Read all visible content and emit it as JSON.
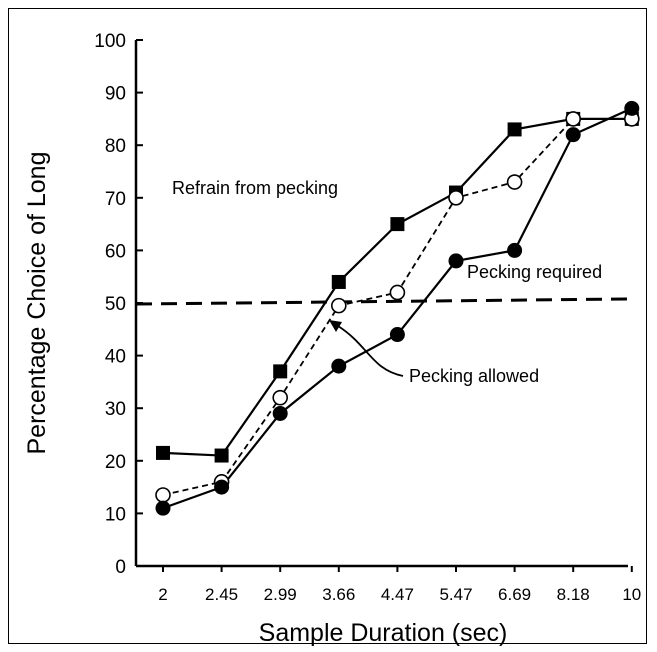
{
  "chart_data": {
    "type": "line",
    "xlabel": "Sample Duration (sec)",
    "ylabel": "Percentage Choice of Long",
    "ylim": [
      0,
      100
    ],
    "yticks": [
      "0",
      "10",
      "20",
      "30",
      "40",
      "50",
      "60",
      "70",
      "80",
      "90",
      "100"
    ],
    "categories": [
      "2",
      "2.45",
      "2.99",
      "3.66",
      "4.47",
      "5.47",
      "6.69",
      "8.18",
      "10"
    ],
    "series": [
      {
        "name": "Refrain from pecking",
        "marker": "filled-square",
        "line": "solid",
        "values": [
          21.5,
          21,
          37,
          54,
          65,
          71,
          83,
          85,
          85
        ]
      },
      {
        "name": "Pecking allowed",
        "marker": "open-circle",
        "line": "dashed",
        "values": [
          13.5,
          16,
          32,
          49.5,
          52,
          70,
          73,
          85,
          85
        ]
      },
      {
        "name": "Pecking required",
        "marker": "filled-circle",
        "line": "solid",
        "values": [
          11,
          15,
          29,
          38,
          44,
          58,
          60,
          82,
          87
        ]
      }
    ],
    "reference_line": {
      "y": 50,
      "style": "dashed"
    },
    "annotations": {
      "refrain": "Refrain from pecking",
      "required": "Pecking required",
      "allowed": "Pecking allowed"
    },
    "grid": false,
    "colors": {
      "line": "#000000",
      "background": "#ffffff"
    }
  }
}
